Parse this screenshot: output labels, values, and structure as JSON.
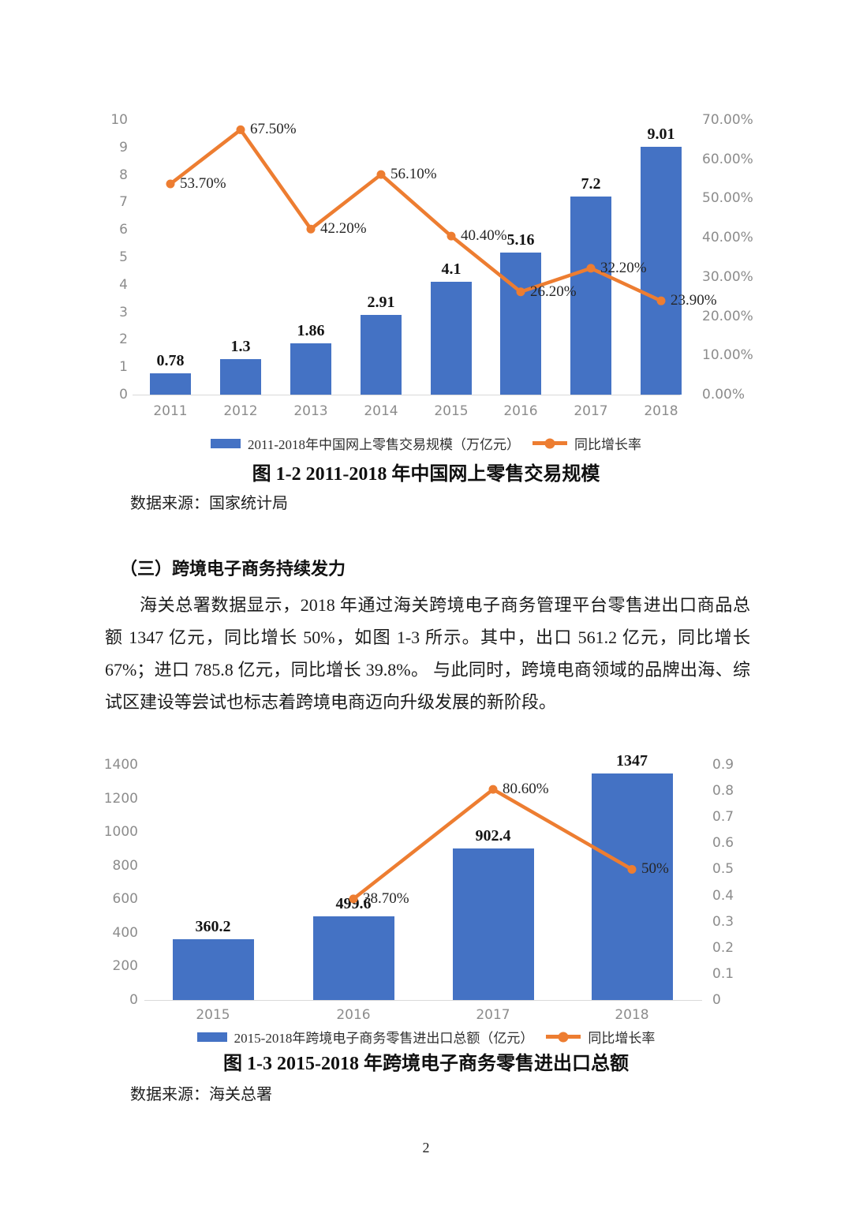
{
  "page": {
    "number": "2"
  },
  "colors": {
    "bar": "#4472C4",
    "line": "#ED7D31",
    "axis_text": "#8C8C8C",
    "axis_line": "#D9D9D9"
  },
  "figure1": {
    "caption": "图 1-2  2011-2018 年中国网上零售交易规模",
    "source": "数据来源：国家统计局"
  },
  "section": {
    "heading": "（三）跨境电子商务持续发力",
    "paragraph": "海关总署数据显示，2018 年通过海关跨境电子商务管理平台零售进出口商品总额 1347 亿元，同比增长 50%，如图 1-3 所示。其中，出口 561.2 亿元，同比增长 67%；进口 785.8 亿元，同比增长 39.8%。 与此同时，跨境电商领域的品牌出海、综试区建设等尝试也标志着跨境电商迈向升级发展的新阶段。"
  },
  "figure2": {
    "caption": "图 1-3  2015-2018 年跨境电子商务零售进出口总额",
    "source": "数据来源：海关总署"
  },
  "chart_data": [
    {
      "type": "bar+line",
      "title": "图 1-2 2011-2018 年中国网上零售交易规模",
      "categories": [
        "2011",
        "2012",
        "2013",
        "2014",
        "2015",
        "2016",
        "2017",
        "2018"
      ],
      "series": [
        {
          "name": "2011-2018年中国网上零售交易规模（万亿元）",
          "type": "bar",
          "axis": "left",
          "values": [
            0.78,
            1.3,
            1.86,
            2.91,
            4.1,
            5.16,
            7.2,
            9.01
          ],
          "labels": [
            "0.78",
            "1.3",
            "1.86",
            "2.91",
            "4.1",
            "5.16",
            "7.2",
            "9.01"
          ]
        },
        {
          "name": "同比增长率",
          "type": "line",
          "axis": "right",
          "values": [
            0.537,
            0.675,
            0.422,
            0.561,
            0.404,
            0.262,
            0.322,
            0.239
          ],
          "labels": [
            "53.70%",
            "67.50%",
            "42.20%",
            "56.10%",
            "40.40%",
            "26.20%",
            "32.20%",
            "23.90%"
          ]
        }
      ],
      "left_axis": {
        "min": 0,
        "max": 10,
        "ticks": [
          "10",
          "9",
          "8",
          "7",
          "6",
          "5",
          "4",
          "3",
          "2",
          "1",
          "0"
        ]
      },
      "right_axis": {
        "min": 0,
        "max": 0.7,
        "ticks": [
          "70.00%",
          "60.00%",
          "50.00%",
          "40.00%",
          "30.00%",
          "20.00%",
          "10.00%",
          "0.00%"
        ]
      },
      "grid": false,
      "legend_position": "bottom"
    },
    {
      "type": "bar+line",
      "title": "图 1-3 2015-2018 年跨境电子商务零售进出口总额",
      "categories": [
        "2015",
        "2016",
        "2017",
        "2018"
      ],
      "series": [
        {
          "name": "2015-2018年跨境电子商务零售进出口总额（亿元）",
          "type": "bar",
          "axis": "left",
          "values": [
            360.2,
            499.6,
            902.4,
            1347
          ],
          "labels": [
            "360.2",
            "499.6",
            "902.4",
            "1347"
          ]
        },
        {
          "name": "同比增长率",
          "type": "line",
          "axis": "right",
          "values": [
            null,
            0.387,
            0.806,
            0.5
          ],
          "labels": [
            null,
            "38.70%",
            "80.60%",
            "50%"
          ]
        }
      ],
      "left_axis": {
        "min": 0,
        "max": 1400,
        "ticks": [
          "1400",
          "1200",
          "1000",
          "800",
          "600",
          "400",
          "200",
          "0"
        ]
      },
      "right_axis": {
        "min": 0,
        "max": 0.9,
        "ticks": [
          "0.9",
          "0.8",
          "0.7",
          "0.6",
          "0.5",
          "0.4",
          "0.3",
          "0.2",
          "0.1",
          "0"
        ]
      },
      "grid": false,
      "legend_position": "bottom"
    }
  ]
}
